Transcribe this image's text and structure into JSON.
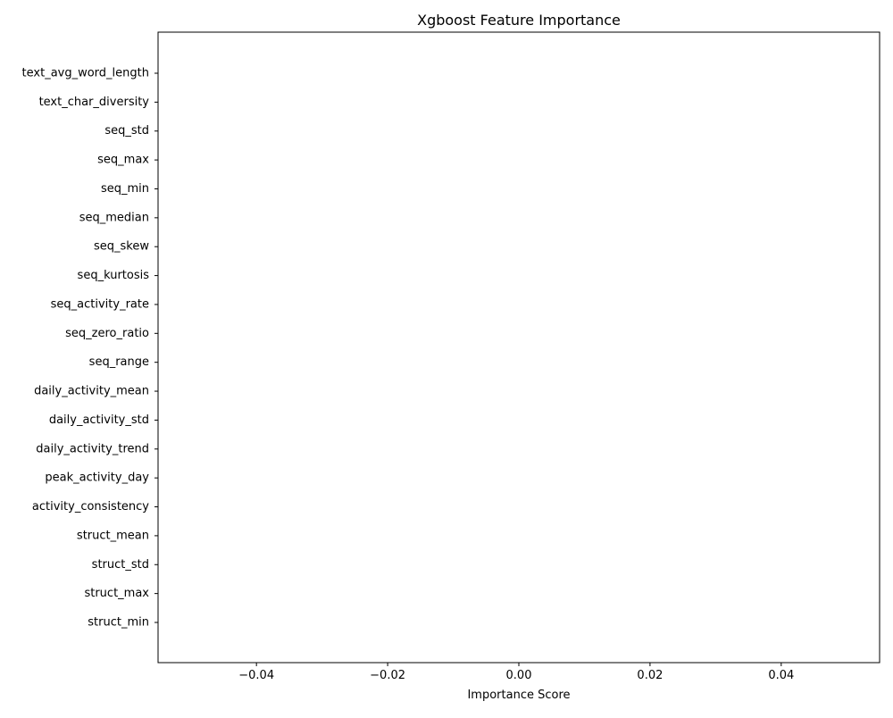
{
  "chart_data": {
    "type": "bar",
    "orientation": "horizontal",
    "title": "Xgboost Feature Importance",
    "xlabel": "Importance Score",
    "ylabel": "",
    "xlim": [
      -0.055,
      0.055
    ],
    "xticks": [
      -0.04,
      -0.02,
      0.0,
      0.02,
      0.04
    ],
    "xtick_labels": [
      "−0.04",
      "−0.02",
      "0.00",
      "0.02",
      "0.04"
    ],
    "categories": [
      "text_avg_word_length",
      "text_char_diversity",
      "seq_std",
      "seq_max",
      "seq_min",
      "seq_median",
      "seq_skew",
      "seq_kurtosis",
      "seq_activity_rate",
      "seq_zero_ratio",
      "seq_range",
      "daily_activity_mean",
      "daily_activity_std",
      "daily_activity_trend",
      "peak_activity_day",
      "activity_consistency",
      "struct_mean",
      "struct_std",
      "struct_max",
      "struct_min"
    ],
    "values": [
      0,
      0,
      0,
      0,
      0,
      0,
      0,
      0,
      0,
      0,
      0,
      0,
      0,
      0,
      0,
      0,
      0,
      0,
      0,
      0
    ],
    "grid": false,
    "bar_color": "#1f77b4"
  }
}
